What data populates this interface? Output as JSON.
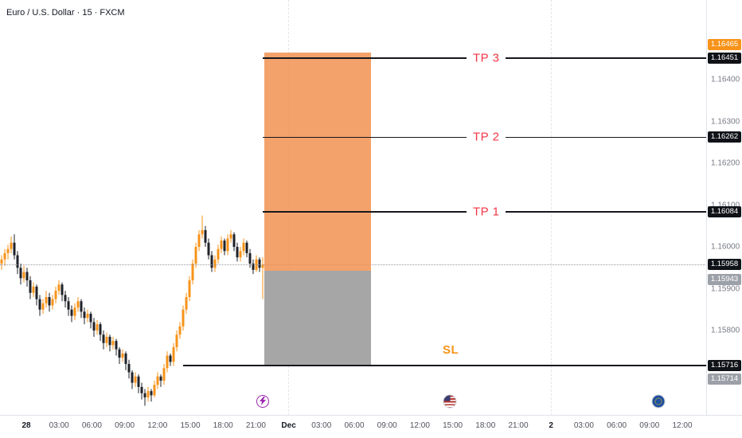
{
  "legend": {
    "symbol_title": "Euro / U.S. Dollar · 15 · FXCM"
  },
  "colors": {
    "up_candle": "#F7931A",
    "down_candle": "#1F2228",
    "profit_zone": "rgba(242,142,74,0.82)",
    "loss_zone": "rgba(158,158,158,0.92)",
    "tp_label": "#F23645",
    "sl_label": "#F7931A",
    "level_line": "#16181D"
  },
  "icons": {
    "lightning": "lightning-event-icon",
    "us_flag": "us-economic-event-icon",
    "eu_flag": "eu-economic-event-icon"
  },
  "price_axis": {
    "ticks": [
      "1.16400",
      "1.16300",
      "1.16200",
      "1.16100",
      "1.16000",
      "1.15900",
      "1.15800"
    ],
    "badges": [
      {
        "text": "1.16465",
        "style": "orange",
        "price": 1.16465
      },
      {
        "text": "1.16451",
        "style": "black",
        "price": 1.16451
      },
      {
        "text": "1.16262",
        "style": "black",
        "price": 1.16262
      },
      {
        "text": "1.16084",
        "style": "black",
        "price": 1.16084
      },
      {
        "text": "1.15958",
        "style": "black",
        "price": 1.15958
      },
      {
        "text": "1.15943",
        "style": "gray",
        "price": 1.15943
      },
      {
        "text": "1.15716",
        "style": "black",
        "price": 1.15716
      },
      {
        "text": "1.15714",
        "style": "gray",
        "price": 1.15714
      }
    ]
  },
  "time_axis": {
    "labels": [
      {
        "text": "28",
        "major": true
      },
      {
        "text": "03:00"
      },
      {
        "text": "06:00"
      },
      {
        "text": "09:00"
      },
      {
        "text": "12:00"
      },
      {
        "text": "15:00"
      },
      {
        "text": "18:00"
      },
      {
        "text": "21:00"
      },
      {
        "text": "Dec",
        "major": true
      },
      {
        "text": "03:00"
      },
      {
        "text": "06:00"
      },
      {
        "text": "09:00"
      },
      {
        "text": "12:00"
      },
      {
        "text": "15:00"
      },
      {
        "text": "18:00"
      },
      {
        "text": "21:00"
      },
      {
        "text": "2",
        "major": true
      },
      {
        "text": "03:00"
      },
      {
        "text": "06:00"
      },
      {
        "text": "09:00"
      },
      {
        "text": "12:00"
      }
    ]
  },
  "chart_data": {
    "type": "candlestick",
    "title": "Euro / U.S. Dollar · 15 · FXCM",
    "symbol": "EUR/USD",
    "interval": "15",
    "exchange": "FXCM",
    "visible_price_range": [
      1.1562,
      1.165
    ],
    "levels": {
      "take_profits": [
        {
          "label": "TP 3",
          "price": 1.16451
        },
        {
          "label": "TP 2",
          "price": 1.16262
        },
        {
          "label": "TP 1",
          "price": 1.16084
        }
      ],
      "stop_loss": {
        "label": "SL",
        "price": 1.15716
      },
      "current_price": 1.15958,
      "long_position": {
        "target": 1.16465,
        "entry": 1.15943,
        "stop": 1.15714
      }
    },
    "candles": [
      [
        1.1596,
        1.1598,
        1.15945,
        1.1597
      ],
      [
        1.1597,
        1.15995,
        1.15955,
        1.15985
      ],
      [
        1.15985,
        1.16005,
        1.1597,
        1.15995
      ],
      [
        1.15995,
        1.16025,
        1.15985,
        1.1601
      ],
      [
        1.1601,
        1.1603,
        1.1597,
        1.1598
      ],
      [
        1.1598,
        1.1599,
        1.15935,
        1.1595
      ],
      [
        1.1595,
        1.1596,
        1.1591,
        1.15925
      ],
      [
        1.15925,
        1.15955,
        1.15915,
        1.1594
      ],
      [
        1.1594,
        1.1595,
        1.15905,
        1.1592
      ],
      [
        1.1592,
        1.1593,
        1.15875,
        1.1589
      ],
      [
        1.1589,
        1.15915,
        1.1588,
        1.15905
      ],
      [
        1.15905,
        1.1591,
        1.1586,
        1.15875
      ],
      [
        1.15875,
        1.15885,
        1.15835,
        1.1585
      ],
      [
        1.1585,
        1.15875,
        1.1584,
        1.15865
      ],
      [
        1.15865,
        1.15895,
        1.15855,
        1.1588
      ],
      [
        1.1588,
        1.1589,
        1.15845,
        1.1586
      ],
      [
        1.1586,
        1.15885,
        1.1585,
        1.15875
      ],
      [
        1.15875,
        1.15905,
        1.15865,
        1.15895
      ],
      [
        1.15895,
        1.1592,
        1.15885,
        1.1591
      ],
      [
        1.1591,
        1.15915,
        1.1587,
        1.15885
      ],
      [
        1.15885,
        1.15895,
        1.15855,
        1.1587
      ],
      [
        1.1587,
        1.1588,
        1.15835,
        1.1585
      ],
      [
        1.1585,
        1.1586,
        1.1582,
        1.15835
      ],
      [
        1.15835,
        1.15865,
        1.15825,
        1.15855
      ],
      [
        1.15855,
        1.1588,
        1.15845,
        1.1587
      ],
      [
        1.1587,
        1.15875,
        1.1583,
        1.15845
      ],
      [
        1.15845,
        1.15855,
        1.15815,
        1.1583
      ],
      [
        1.1583,
        1.1585,
        1.1582,
        1.1584
      ],
      [
        1.1584,
        1.15845,
        1.15805,
        1.1582
      ],
      [
        1.1582,
        1.1583,
        1.15785,
        1.158
      ],
      [
        1.158,
        1.15825,
        1.1579,
        1.15815
      ],
      [
        1.15815,
        1.1582,
        1.15775,
        1.1579
      ],
      [
        1.1579,
        1.158,
        1.15755,
        1.1577
      ],
      [
        1.1577,
        1.15795,
        1.1576,
        1.15785
      ],
      [
        1.15785,
        1.1579,
        1.1575,
        1.15765
      ],
      [
        1.15765,
        1.15785,
        1.15755,
        1.15775
      ],
      [
        1.15775,
        1.1578,
        1.1574,
        1.15755
      ],
      [
        1.15755,
        1.1576,
        1.1572,
        1.15735
      ],
      [
        1.15735,
        1.15755,
        1.15725,
        1.15745
      ],
      [
        1.15745,
        1.1575,
        1.15705,
        1.1572
      ],
      [
        1.1572,
        1.1573,
        1.15685,
        1.157
      ],
      [
        1.157,
        1.15705,
        1.1566,
        1.15675
      ],
      [
        1.15675,
        1.157,
        1.15665,
        1.1569
      ],
      [
        1.1569,
        1.15695,
        1.1565,
        1.15665
      ],
      [
        1.15665,
        1.15675,
        1.15635,
        1.1565
      ],
      [
        1.1565,
        1.1566,
        1.1562,
        1.1564
      ],
      [
        1.1564,
        1.15665,
        1.1563,
        1.15655
      ],
      [
        1.15655,
        1.1566,
        1.1563,
        1.15645
      ],
      [
        1.15645,
        1.1568,
        1.1564,
        1.1567
      ],
      [
        1.1567,
        1.157,
        1.1566,
        1.1569
      ],
      [
        1.1569,
        1.15695,
        1.15665,
        1.1568
      ],
      [
        1.1568,
        1.1572,
        1.1567,
        1.1571
      ],
      [
        1.1571,
        1.1575,
        1.157,
        1.1574
      ],
      [
        1.1574,
        1.15745,
        1.15715,
        1.15725
      ],
      [
        1.15725,
        1.1577,
        1.15715,
        1.1576
      ],
      [
        1.1576,
        1.158,
        1.1575,
        1.1579
      ],
      [
        1.1579,
        1.1582,
        1.1578,
        1.1581
      ],
      [
        1.1581,
        1.1586,
        1.158,
        1.1585
      ],
      [
        1.1585,
        1.1589,
        1.1584,
        1.1588
      ],
      [
        1.1588,
        1.1593,
        1.1587,
        1.1592
      ],
      [
        1.1592,
        1.1597,
        1.1591,
        1.1596
      ],
      [
        1.1596,
        1.1601,
        1.1595,
        1.16
      ],
      [
        1.16,
        1.1604,
        1.1599,
        1.1603
      ],
      [
        1.1603,
        1.16075,
        1.1602,
        1.1604
      ],
      [
        1.1604,
        1.1605,
        1.16,
        1.1601
      ],
      [
        1.1601,
        1.1602,
        1.1597,
        1.1598
      ],
      [
        1.1598,
        1.1599,
        1.1594,
        1.1595
      ],
      [
        1.1595,
        1.1598,
        1.1594,
        1.1597
      ],
      [
        1.1597,
        1.16005,
        1.1596,
        1.15995
      ],
      [
        1.15995,
        1.16025,
        1.15985,
        1.16015
      ],
      [
        1.16015,
        1.1602,
        1.1598,
        1.1599
      ],
      [
        1.1599,
        1.1603,
        1.1598,
        1.1602
      ],
      [
        1.1602,
        1.1604,
        1.1601,
        1.1603
      ],
      [
        1.1603,
        1.16035,
        1.1599,
        1.16
      ],
      [
        1.16,
        1.1601,
        1.15965,
        1.15975
      ],
      [
        1.15975,
        1.16,
        1.15965,
        1.1599
      ],
      [
        1.1599,
        1.1602,
        1.1598,
        1.1601
      ],
      [
        1.1601,
        1.16015,
        1.15975,
        1.15985
      ],
      [
        1.15985,
        1.15995,
        1.1595,
        1.1596
      ],
      [
        1.1596,
        1.1597,
        1.15935,
        1.15945
      ],
      [
        1.15945,
        1.1598,
        1.1594,
        1.1597
      ],
      [
        1.1597,
        1.15975,
        1.1594,
        1.1595
      ],
      [
        1.1595,
        1.15975,
        1.15875,
        1.15958
      ]
    ]
  }
}
